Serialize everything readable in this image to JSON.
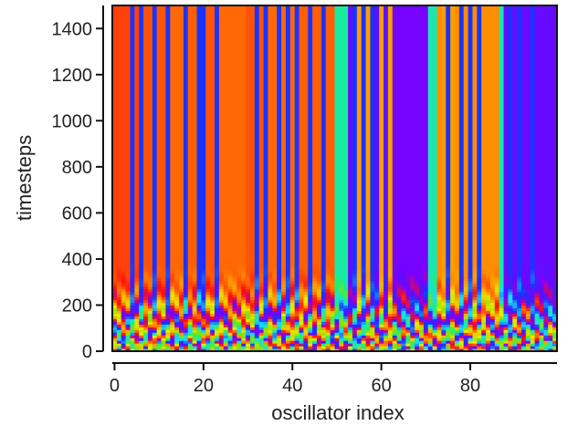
{
  "chart_data": {
    "type": "heatmap",
    "xlabel": "oscillator index",
    "ylabel": "timesteps",
    "xlim": [
      -0.5,
      99.5
    ],
    "ylim": [
      0,
      1500
    ],
    "xticks": [
      0,
      20,
      40,
      60,
      80
    ],
    "yticks": [
      0,
      200,
      400,
      600,
      800,
      1000,
      1200,
      1400
    ],
    "x_tick_labels": [
      "0",
      "20",
      "40",
      "60",
      "80"
    ],
    "y_tick_labels": [
      "0",
      "200",
      "400",
      "600",
      "800",
      "1000",
      "1200",
      "1400"
    ],
    "n_oscillators": 100,
    "colormap": [
      "#1a33ff",
      "#7a00ff",
      "#ff1010",
      "#ff8a00",
      "#e6ee00",
      "#8fe000",
      "#19f080",
      "#1ad9ff"
    ],
    "transient_end_timestep": 400,
    "steady_state_phase_by_index": [
      0.3,
      0.3,
      0.3,
      0.3,
      0.0,
      0.3,
      0.0,
      0.32,
      0.32,
      0.0,
      0.32,
      0.32,
      0.0,
      0.34,
      0.34,
      0.34,
      0.0,
      0.33,
      0.33,
      0.0,
      0.0,
      0.32,
      0.32,
      0.0,
      0.34,
      0.34,
      0.34,
      0.34,
      0.34,
      0.34,
      0.32,
      0.32,
      0.0,
      0.32,
      0.0,
      0.34,
      0.34,
      0.0,
      0.34,
      0.0,
      0.34,
      0.0,
      0.33,
      0.33,
      0.0,
      0.33,
      0.33,
      0.0,
      0.33,
      0.33,
      0.78,
      0.78,
      0.78,
      0.1,
      0.0,
      0.4,
      0.0,
      0.4,
      0.0,
      0.08,
      0.4,
      0.08,
      0.4,
      0.12,
      0.12,
      0.12,
      0.12,
      0.12,
      0.12,
      0.12,
      0.12,
      0.8,
      0.8,
      0.38,
      0.4,
      0.0,
      0.4,
      0.38,
      0.0,
      0.38,
      0.0,
      0.38,
      0.0,
      0.38,
      0.38,
      0.38,
      0.38,
      0.8,
      0.1,
      0.0,
      0.1,
      0.0,
      0.1,
      0.1,
      0.0,
      0.1,
      0.1,
      0.1,
      0.1,
      0.1
    ]
  }
}
